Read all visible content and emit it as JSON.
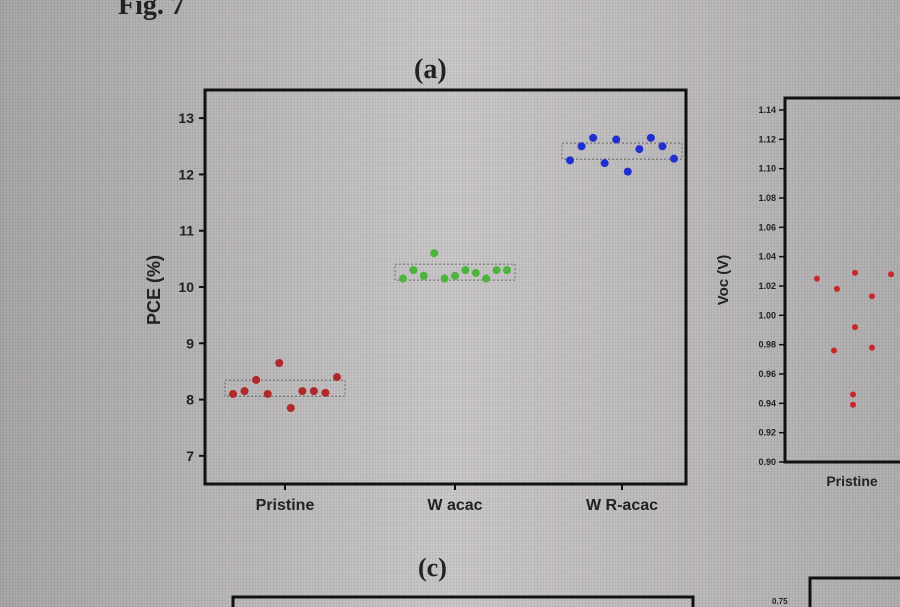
{
  "figure_label": "Fig. 7",
  "panel_a_label": "(a)",
  "panel_c_label": "(c)",
  "chart_data": [
    {
      "type": "scatter",
      "title": "(a)",
      "xlabel": "",
      "ylabel": "PCE (%)",
      "ylim": [
        6.5,
        13.5
      ],
      "yticks": [
        "7",
        "8",
        "9",
        "10",
        "11",
        "12",
        "13"
      ],
      "categories": [
        "Pristine",
        "W acac",
        "W R-acac"
      ],
      "series": [
        {
          "name": "Pristine",
          "color": "#b0282a",
          "values": [
            8.1,
            8.15,
            8.35,
            8.1,
            8.65,
            7.85,
            8.15,
            8.15,
            8.12,
            8.4
          ]
        },
        {
          "name": "W acac",
          "color": "#4cb43c",
          "values": [
            10.15,
            10.3,
            10.2,
            10.6,
            10.15,
            10.2,
            10.3,
            10.25,
            10.15,
            10.3,
            10.3
          ]
        },
        {
          "name": "W R-acac",
          "color": "#1f2fd0",
          "values": [
            12.25,
            12.5,
            12.65,
            12.2,
            12.62,
            12.05,
            12.45,
            12.65,
            12.5,
            12.28
          ]
        }
      ]
    },
    {
      "type": "scatter",
      "title": "",
      "ylabel": "Voc (V)",
      "ylim": [
        0.9,
        1.14
      ],
      "yticks": [
        "0.90",
        "0.92",
        "0.94",
        "0.96",
        "0.98",
        "1.00",
        "1.02",
        "1.04",
        "1.06",
        "1.08",
        "1.10",
        "1.12",
        "1.14"
      ],
      "categories": [
        "Pristine"
      ],
      "series": [
        {
          "name": "Pristine",
          "color": "#c8262a",
          "values": [
            1.025,
            1.018,
            1.029,
            1.013,
            1.028,
            0.992,
            0.976,
            0.978,
            0.946,
            0.939
          ]
        }
      ]
    }
  ],
  "partial_tick_c": "0.75"
}
